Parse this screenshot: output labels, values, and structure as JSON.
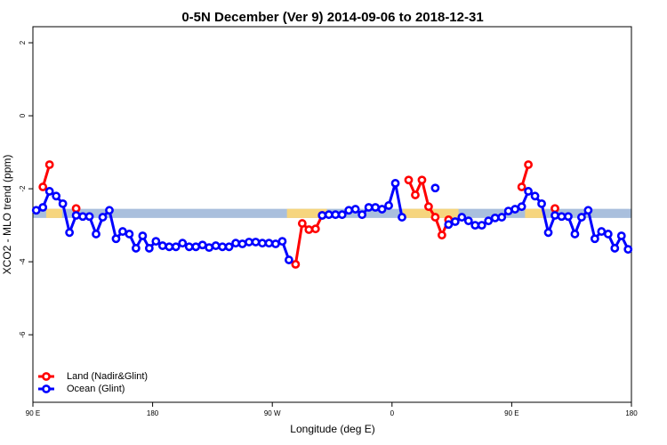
{
  "chart_data": {
    "type": "line",
    "title": "0-5N December (Ver 9)   2014-09-06 to 2018-12-31",
    "x_label": "Longitude (deg E)",
    "y_label": "XCO2 - MLO trend (ppm)",
    "xlim": [
      90,
      540
    ],
    "ylim": [
      -7.85,
      2.44
    ],
    "xticks": [
      {
        "value": 90,
        "label": "90 E"
      },
      180,
      {
        "value": 270,
        "label": "90 W"
      },
      {
        "value": 360,
        "label": "0"
      },
      {
        "value": 450,
        "label": "90 E"
      },
      {
        "value": 540,
        "label": "180"
      }
    ],
    "yticks": [
      -6,
      -4,
      -2,
      0,
      2
    ],
    "legend": "bottom-left",
    "band": {
      "range": [
        -2.8,
        -2.55
      ],
      "color": "#a9bfdd",
      "land_color": "#f6d57e",
      "land_x": [
        [
          100,
          112
        ],
        [
          281,
          311
        ],
        [
          368,
          410
        ],
        [
          460,
          475
        ]
      ]
    },
    "x": [
      92.5,
      97.5,
      102.5,
      107.5,
      112.5,
      117.5,
      122.5,
      127.5,
      132.5,
      137.5,
      142.5,
      147.5,
      152.5,
      157.5,
      162.5,
      167.5,
      172.5,
      177.5,
      182.5,
      187.5,
      192.5,
      197.5,
      202.5,
      207.5,
      212.5,
      217.5,
      222.5,
      227.5,
      232.5,
      237.5,
      242.5,
      247.5,
      252.5,
      257.5,
      262.5,
      267.5,
      272.5,
      277.5,
      282.5,
      287.5,
      292.5,
      297.5,
      302.5,
      307.5,
      312.5,
      317.5,
      322.5,
      327.5,
      332.5,
      337.5,
      342.5,
      347.5,
      352.5,
      357.5,
      362.5,
      367.5,
      372.5,
      377.5,
      382.5,
      387.5,
      392.5,
      397.5,
      402.5,
      407.5,
      412.5,
      417.5,
      422.5,
      427.5,
      432.5,
      437.5,
      442.5,
      447.5,
      452.5,
      457.5,
      462.5,
      467.5,
      472.5,
      477.5,
      482.5,
      487.5,
      492.5,
      497.5,
      502.5,
      507.5,
      512.5,
      517.5,
      522.5,
      527.5,
      532.5,
      537.5
    ],
    "series": [
      {
        "name": "Land (Nadir&Glint)",
        "color": "#ff0000",
        "values": [
          null,
          -1.95,
          -1.34,
          null,
          null,
          null,
          -2.54,
          null,
          null,
          null,
          null,
          null,
          null,
          null,
          null,
          null,
          null,
          null,
          null,
          null,
          null,
          null,
          null,
          null,
          null,
          null,
          null,
          null,
          null,
          null,
          null,
          null,
          null,
          null,
          null,
          null,
          null,
          null,
          null,
          -4.07,
          -2.95,
          -3.12,
          -3.1,
          -2.73,
          null,
          null,
          null,
          null,
          null,
          null,
          null,
          null,
          null,
          null,
          null,
          null,
          -1.76,
          -2.17,
          -1.76,
          -2.49,
          -2.78,
          -3.27,
          -2.85,
          null,
          null,
          null,
          null,
          null,
          null,
          null,
          null,
          null,
          null,
          -1.95,
          -1.34,
          null,
          null,
          null,
          -2.54,
          null,
          null,
          null,
          null,
          null,
          null,
          null,
          null,
          null,
          null,
          null
        ]
      },
      {
        "name": "Ocean (Glint)",
        "color": "#0000ff",
        "values": [
          -2.59,
          -2.51,
          -2.07,
          -2.2,
          -2.41,
          -3.2,
          -2.73,
          -2.76,
          -2.76,
          -3.24,
          -2.78,
          -2.59,
          -3.37,
          -3.17,
          -3.24,
          -3.63,
          -3.29,
          -3.63,
          -3.44,
          -3.56,
          -3.59,
          -3.59,
          -3.49,
          -3.59,
          -3.59,
          -3.54,
          -3.61,
          -3.56,
          -3.59,
          -3.59,
          -3.49,
          -3.51,
          -3.46,
          -3.46,
          -3.49,
          -3.49,
          -3.51,
          -3.44,
          -3.95,
          null,
          null,
          null,
          null,
          -2.73,
          -2.71,
          -2.71,
          -2.71,
          -2.59,
          -2.56,
          -2.71,
          -2.51,
          -2.51,
          -2.56,
          -2.46,
          -1.85,
          -2.78,
          null,
          null,
          null,
          null,
          -1.98,
          null,
          -2.98,
          -2.9,
          -2.78,
          -2.88,
          -3.0,
          -3.0,
          -2.88,
          -2.8,
          -2.78,
          -2.61,
          -2.56,
          -2.49,
          -2.07,
          -2.2,
          -2.41,
          -3.2,
          -2.73,
          -2.76,
          -2.76,
          -3.24,
          -2.78,
          -2.59,
          -3.37,
          -3.17,
          -3.24,
          -3.63,
          -3.29,
          -3.66
        ]
      }
    ]
  }
}
